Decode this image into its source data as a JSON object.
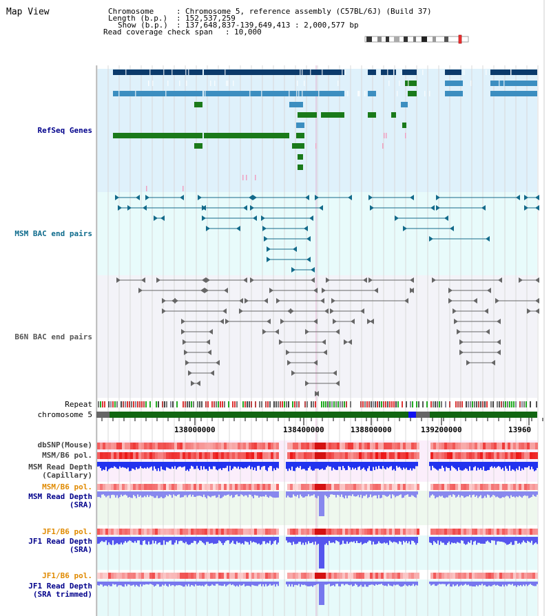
{
  "title": "Map View",
  "header": {
    "chromosome_key": "Chromosome",
    "chromosome_val": "Chromosome 5, reference assembly (C57BL/6J) (Build 37)",
    "length_key": "Length (b.p.)",
    "length_val": "152,537,259",
    "show_key": "Show (b.p.)",
    "show_val": "137,648,837-139,649,413 : 2,000,577 bp",
    "coverage_key": "Read coverage check span",
    "coverage_val": "10,000"
  },
  "tracks": {
    "refseq": "RefSeq Genes",
    "msm_bac": "MSM BAC end pairs",
    "b6n_bac": "B6N BAC end pairs",
    "repeat": "Repeat",
    "chromosome": "chromosome 5",
    "dbsnp": "dbSNP(Mouse)",
    "msm_b6_pol_1": "MSM/B6 pol.",
    "msm_depth_cap_1": "MSM Read Depth",
    "msm_depth_cap_2": "(Capillary)",
    "msm_b6_pol_2": "MSM/B6 pol.",
    "msm_depth_sra_1": "MSM Read Depth",
    "msm_depth_sra_2": "(SRA)",
    "jf1_b6_pol_1": "JF1/B6 pol.",
    "jf1_depth_sra_1": "JF1 Read Depth",
    "jf1_depth_sra_2": "(SRA)",
    "jf1_b6_pol_2": "JF1/B6 pol.",
    "jf1_depth_trim_1": "JF1 Read Depth",
    "jf1_depth_trim_2": "(SRA trimmed)"
  },
  "axis": {
    "ticks": [
      "138000000",
      "138400000",
      "138800000",
      "139200000",
      "13960"
    ]
  },
  "colors": {
    "refseq_bg": "#dff1fb",
    "msm_bg": "#e8fbfb",
    "b6n_bg": "#f3f3f8",
    "gene_dark": "#0b3a6b",
    "gene_mid": "#3c8ec0",
    "gene_green": "#1a7a1a",
    "bac_teal": "#136a8a",
    "bac_gray": "#666666",
    "label_blue": "#00008b",
    "label_teal": "#0e6b8c",
    "label_orange": "#e08a00",
    "label_gray": "#555555"
  }
}
